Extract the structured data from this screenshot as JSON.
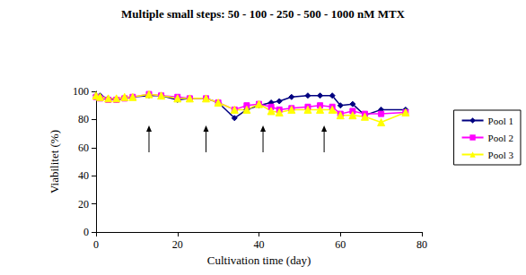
{
  "chart_data": {
    "type": "line",
    "title": "Multiple small steps: 50 - 100 - 250 - 500 - 1000 nM MTX",
    "x_label": "Cultivation time (day)",
    "y_label": "Viabilitet (%)",
    "x": [
      0,
      1,
      3,
      5,
      7,
      9,
      13,
      16,
      20,
      23,
      27,
      30,
      34,
      37,
      40,
      43,
      45,
      48,
      52,
      55,
      58,
      60,
      63,
      66,
      70,
      76
    ],
    "series": [
      {
        "name": "Pool 1",
        "color": "#000080",
        "marker": "diamond",
        "values": [
          97,
          97,
          95,
          94,
          95,
          96,
          97,
          97,
          94,
          95,
          95,
          92,
          81,
          87,
          90,
          92,
          93,
          96,
          97,
          97,
          97,
          90,
          91,
          83,
          87,
          87
        ]
      },
      {
        "name": "Pool 2",
        "color": "#ff00ff",
        "marker": "square",
        "values": [
          96,
          95,
          94,
          94,
          95,
          96,
          98,
          97,
          96,
          95,
          95,
          92,
          87,
          90,
          91,
          89,
          87,
          88,
          89,
          90,
          89,
          84,
          86,
          84,
          84,
          85
        ]
      },
      {
        "name": "Pool 3",
        "color": "#ffff00",
        "marker": "triangle",
        "values": [
          97,
          96,
          95,
          95,
          96,
          96,
          98,
          97,
          95,
          95,
          95,
          92,
          87,
          87,
          91,
          86,
          85,
          87,
          87,
          87,
          87,
          83,
          83,
          82,
          78,
          85
        ]
      }
    ],
    "arrows": [
      13,
      27,
      41,
      56
    ],
    "xlim": [
      0,
      80
    ],
    "xticks": [
      0,
      20,
      40,
      60,
      80
    ],
    "ylim": [
      0,
      100
    ],
    "yticks": [
      0,
      20,
      40,
      60,
      80,
      100
    ],
    "grid": false,
    "legend": "right"
  }
}
